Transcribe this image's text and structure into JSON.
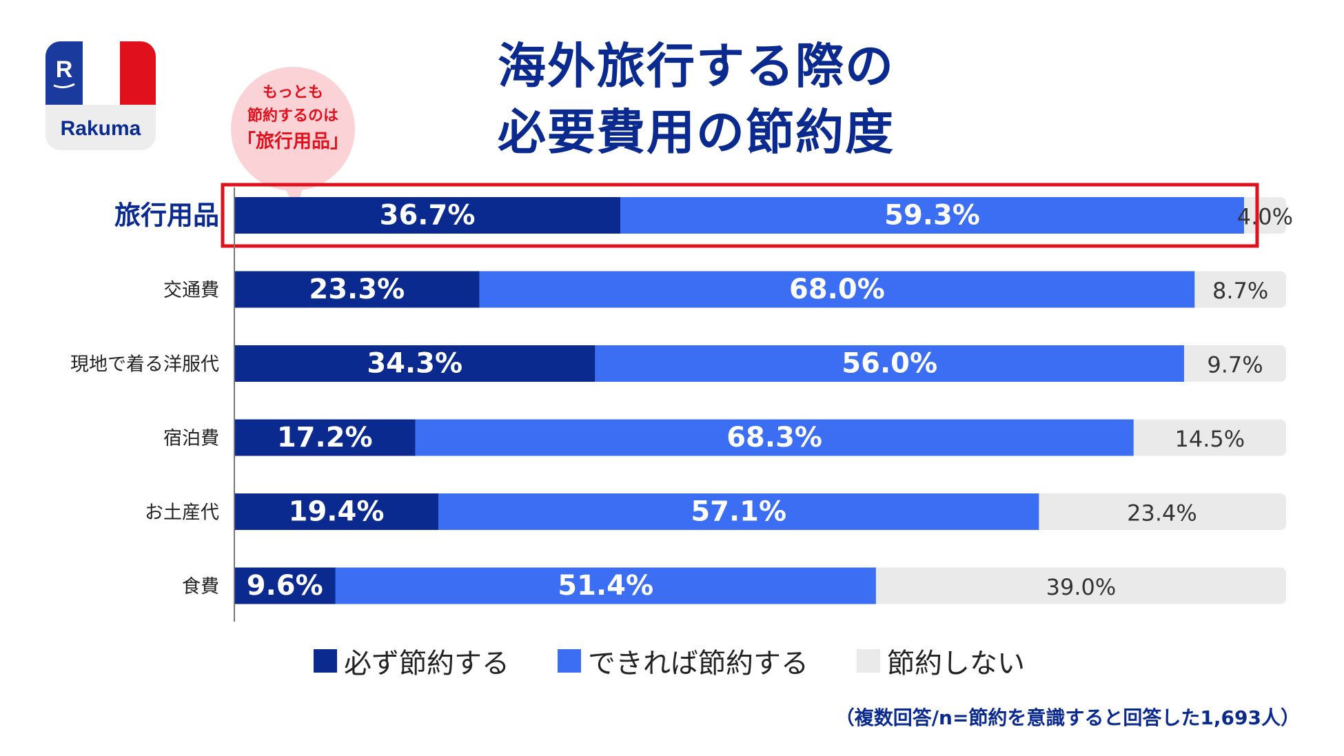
{
  "brand": {
    "name": "Rakuma",
    "logo_letter": "R"
  },
  "title_lines": [
    "海外旅行する際の",
    "必要費用の節約度"
  ],
  "callout": {
    "line1": "もっとも",
    "line2": "節約するのは",
    "line3": "「旅行用品」"
  },
  "footnote": "（複数回答/n=節約を意識すると回答した1,693人）",
  "colors": {
    "always": "#0a2a8f",
    "if_possible": "#3b6ef2",
    "never": "#eaeaea",
    "highlight": "#e0101c",
    "title": "#0a2a8f"
  },
  "chart_data": {
    "type": "bar",
    "orientation": "horizontal",
    "stacked": true,
    "title": "海外旅行する際の必要費用の節約度",
    "categories": [
      "旅行用品",
      "交通費",
      "現地で着る洋服代",
      "宿泊費",
      "お土産代",
      "食費"
    ],
    "series": [
      {
        "name": "必ず節約する",
        "values": [
          36.7,
          23.3,
          34.3,
          17.2,
          19.4,
          9.6
        ]
      },
      {
        "name": "できれば節約する",
        "values": [
          59.3,
          68.0,
          56.0,
          68.3,
          57.1,
          51.4
        ]
      },
      {
        "name": "節約しない",
        "values": [
          4.0,
          8.7,
          9.7,
          14.5,
          23.4,
          39.0
        ]
      }
    ],
    "value_format": "%",
    "xlim": [
      0,
      100
    ],
    "legend_position": "bottom",
    "grid": false,
    "highlighted_category": "旅行用品"
  }
}
